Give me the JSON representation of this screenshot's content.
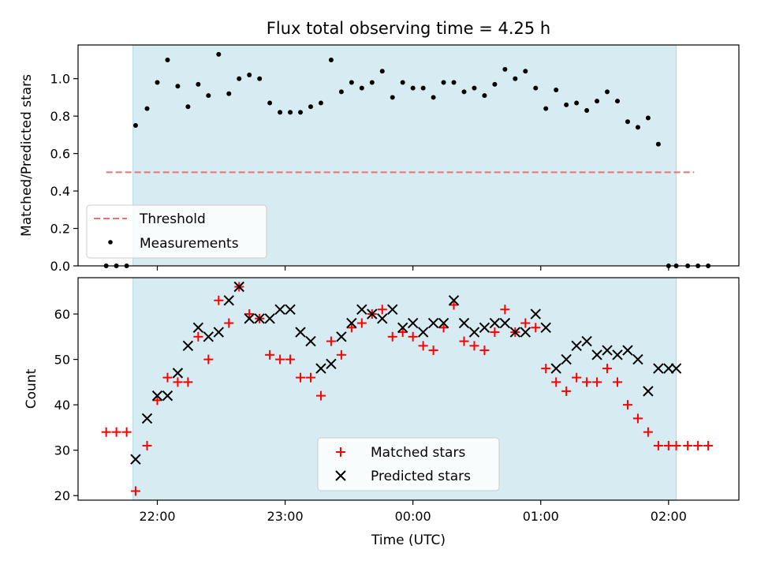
{
  "chart_data": [
    {
      "type": "scatter",
      "title": "Flux total observing time = 4.25 h",
      "xlabel": "",
      "ylabel": "Matched/Predicted stars",
      "x_unit": "hours (UTC, relative to 00:00)",
      "xlim": [
        -2.62,
        2.55
      ],
      "ylim": [
        0,
        1.18
      ],
      "yticks": [
        0.0,
        0.2,
        0.4,
        0.6,
        0.8,
        1.0
      ],
      "yticklabels": [
        "0.0",
        "0.2",
        "0.4",
        "0.6",
        "0.8",
        "1.0"
      ],
      "observing_window": [
        -2.19,
        2.06
      ],
      "threshold": {
        "value": 0.5,
        "x_range": [
          -2.4,
          2.2
        ],
        "color": "#f07070"
      },
      "legend": {
        "position": "lower-left",
        "entries": [
          "Threshold",
          "Measurements"
        ]
      },
      "series": [
        {
          "name": "Measurements",
          "marker": "dot",
          "color": "#000000",
          "x": [
            -2.4,
            -2.32,
            -2.24,
            -2.17,
            -2.08,
            -2.0,
            -1.92,
            -1.84,
            -1.76,
            -1.68,
            -1.6,
            -1.52,
            -1.44,
            -1.36,
            -1.28,
            -1.2,
            -1.12,
            -1.04,
            -0.96,
            -0.88,
            -0.8,
            -0.72,
            -0.64,
            -0.56,
            -0.48,
            -0.4,
            -0.32,
            -0.24,
            -0.16,
            -0.08,
            0.0,
            0.08,
            0.16,
            0.24,
            0.32,
            0.4,
            0.48,
            0.56,
            0.64,
            0.72,
            0.8,
            0.88,
            0.96,
            1.04,
            1.12,
            1.2,
            1.28,
            1.36,
            1.44,
            1.52,
            1.6,
            1.68,
            1.76,
            1.84,
            1.92,
            2.0,
            2.06,
            2.15,
            2.23,
            2.31
          ],
          "y": [
            0,
            0,
            0,
            0.75,
            0.84,
            0.98,
            1.1,
            0.96,
            0.85,
            0.97,
            0.91,
            1.13,
            0.92,
            1.0,
            1.02,
            1.0,
            0.87,
            0.82,
            0.82,
            0.82,
            0.85,
            0.87,
            1.1,
            0.93,
            0.98,
            0.95,
            0.98,
            1.04,
            0.9,
            0.98,
            0.95,
            0.95,
            0.9,
            0.98,
            0.98,
            0.93,
            0.95,
            0.91,
            0.97,
            1.05,
            1.0,
            1.04,
            0.95,
            0.84,
            0.94,
            0.86,
            0.87,
            0.83,
            0.88,
            0.93,
            0.88,
            0.77,
            0.74,
            0.79,
            0.65,
            0,
            0,
            0,
            0,
            0
          ]
        }
      ]
    },
    {
      "type": "scatter",
      "title": "",
      "xlabel": "Time (UTC)",
      "ylabel": "Count",
      "x_unit": "hours (UTC, relative to 00:00)",
      "xlim": [
        -2.62,
        2.55
      ],
      "ylim": [
        19,
        68
      ],
      "yticks": [
        20,
        30,
        40,
        50,
        60
      ],
      "yticklabels": [
        "20",
        "30",
        "40",
        "50",
        "60"
      ],
      "xticks": [
        -2,
        -1,
        0,
        1,
        2
      ],
      "xticklabels": [
        "22:00",
        "23:00",
        "00:00",
        "01:00",
        "02:00"
      ],
      "observing_window": [
        -2.19,
        2.06
      ],
      "legend": {
        "position": "lower-center",
        "entries": [
          "Matched stars",
          "Predicted stars"
        ]
      },
      "series": [
        {
          "name": "Matched stars",
          "marker": "plus",
          "color": "#ff0000",
          "x": [
            -2.4,
            -2.32,
            -2.24,
            -2.17,
            -2.08,
            -2.0,
            -1.92,
            -1.84,
            -1.76,
            -1.68,
            -1.6,
            -1.52,
            -1.44,
            -1.36,
            -1.28,
            -1.2,
            -1.12,
            -1.04,
            -0.96,
            -0.88,
            -0.8,
            -0.72,
            -0.64,
            -0.56,
            -0.48,
            -0.4,
            -0.32,
            -0.24,
            -0.16,
            -0.08,
            0.0,
            0.08,
            0.16,
            0.24,
            0.32,
            0.4,
            0.48,
            0.56,
            0.64,
            0.72,
            0.8,
            0.88,
            0.96,
            1.04,
            1.12,
            1.2,
            1.28,
            1.36,
            1.44,
            1.52,
            1.6,
            1.68,
            1.76,
            1.84,
            1.92,
            2.0,
            2.06,
            2.15,
            2.23,
            2.31
          ],
          "y": [
            34,
            34,
            34,
            21,
            31,
            41,
            46,
            45,
            45,
            55,
            50,
            63,
            58,
            66,
            60,
            59,
            51,
            50,
            50,
            46,
            46,
            42,
            54,
            51,
            57,
            58,
            60,
            61,
            55,
            56,
            55,
            53,
            52,
            57,
            62,
            54,
            53,
            52,
            56,
            61,
            56,
            58,
            57,
            48,
            45,
            43,
            46,
            45,
            45,
            48,
            45,
            40,
            37,
            34,
            31,
            31,
            31,
            31,
            31,
            31
          ]
        },
        {
          "name": "Predicted stars",
          "marker": "x",
          "color": "#000000",
          "x": [
            -2.17,
            -2.08,
            -2.0,
            -1.92,
            -1.84,
            -1.76,
            -1.68,
            -1.6,
            -1.52,
            -1.44,
            -1.36,
            -1.28,
            -1.2,
            -1.12,
            -1.04,
            -0.96,
            -0.88,
            -0.8,
            -0.72,
            -0.64,
            -0.56,
            -0.48,
            -0.4,
            -0.32,
            -0.24,
            -0.16,
            -0.08,
            0.0,
            0.08,
            0.16,
            0.24,
            0.32,
            0.4,
            0.48,
            0.56,
            0.64,
            0.72,
            0.8,
            0.88,
            0.96,
            1.04,
            1.12,
            1.2,
            1.28,
            1.36,
            1.44,
            1.52,
            1.6,
            1.68,
            1.76,
            1.84,
            1.92,
            2.0,
            2.06
          ],
          "y": [
            28,
            37,
            42,
            42,
            47,
            53,
            57,
            55,
            56,
            63,
            66,
            59,
            59,
            59,
            61,
            61,
            56,
            54,
            48,
            49,
            55,
            58,
            61,
            60,
            59,
            61,
            57,
            58,
            56,
            58,
            58,
            63,
            58,
            56,
            57,
            58,
            58,
            56,
            56,
            60,
            57,
            48,
            50,
            53,
            54,
            51,
            52,
            51,
            52,
            50,
            43,
            48,
            48,
            48
          ]
        }
      ]
    }
  ]
}
